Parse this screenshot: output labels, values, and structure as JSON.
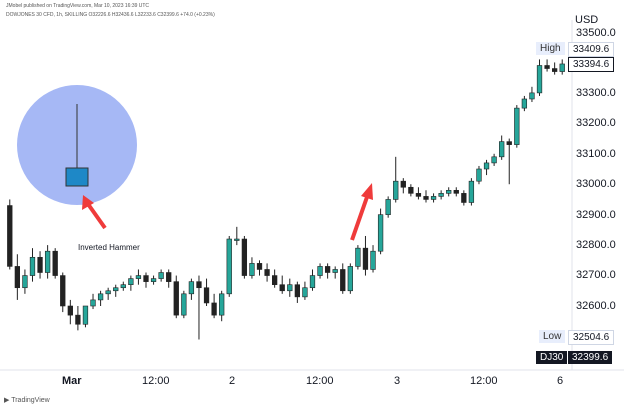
{
  "header": {
    "published_line": "JMobel published on TradingView.com, Mar 10, 2023 16:39 UTC",
    "symbol_line": "DOWJONES 30 CFD, 1h, SKILLING O32226.6 H32436.6 L32233.6 C32399.6 +74.0 (+0.23%)"
  },
  "axis": {
    "currency": "USD",
    "y_ticks": [
      "33500.0",
      "33300.0",
      "33200.0",
      "33100.0",
      "33000.0",
      "32900.0",
      "32800.0",
      "32700.0",
      "32600.0"
    ],
    "x_ticks": [
      "Mar",
      "12:00",
      "2",
      "12:00",
      "3",
      "12:00",
      "6"
    ]
  },
  "tags": {
    "high_label": "High",
    "high_value": "33409.6",
    "current_value": "33394.6",
    "low_label": "Low",
    "low_value": "32504.6",
    "symbol_tag": "DJ30",
    "symbol_value": "32399.6"
  },
  "annotation": {
    "label": "Inverted Hammer"
  },
  "footer": {
    "brand": "TradingView"
  },
  "colors": {
    "up": "#26a69a",
    "down": "#222222",
    "circle": "#a6b8f5",
    "arrow": "#ef3b3b",
    "candle_icon": "#1e88c7"
  },
  "chart_data": {
    "type": "candlestick",
    "title": "",
    "xlabel": "",
    "ylabel": "",
    "ylim": [
      32450,
      33550
    ],
    "candles": [
      {
        "o": 32930,
        "h": 32950,
        "l": 32720,
        "c": 32730
      },
      {
        "o": 32730,
        "h": 32770,
        "l": 32620,
        "c": 32660
      },
      {
        "o": 32660,
        "h": 32720,
        "l": 32640,
        "c": 32700
      },
      {
        "o": 32700,
        "h": 32790,
        "l": 32680,
        "c": 32760
      },
      {
        "o": 32760,
        "h": 32780,
        "l": 32690,
        "c": 32710
      },
      {
        "o": 32710,
        "h": 32800,
        "l": 32690,
        "c": 32780
      },
      {
        "o": 32780,
        "h": 32790,
        "l": 32690,
        "c": 32700
      },
      {
        "o": 32700,
        "h": 32710,
        "l": 32580,
        "c": 32600
      },
      {
        "o": 32600,
        "h": 32620,
        "l": 32540,
        "c": 32570
      },
      {
        "o": 32570,
        "h": 32600,
        "l": 32520,
        "c": 32540
      },
      {
        "o": 32540,
        "h": 32600,
        "l": 32530,
        "c": 32600
      },
      {
        "o": 32600,
        "h": 32640,
        "l": 32590,
        "c": 32620
      },
      {
        "o": 32620,
        "h": 32650,
        "l": 32600,
        "c": 32640
      },
      {
        "o": 32640,
        "h": 32660,
        "l": 32620,
        "c": 32650
      },
      {
        "o": 32650,
        "h": 32670,
        "l": 32630,
        "c": 32660
      },
      {
        "o": 32660,
        "h": 32680,
        "l": 32650,
        "c": 32670
      },
      {
        "o": 32670,
        "h": 32700,
        "l": 32650,
        "c": 32690
      },
      {
        "o": 32690,
        "h": 32720,
        "l": 32670,
        "c": 32700
      },
      {
        "o": 32700,
        "h": 32710,
        "l": 32660,
        "c": 32680
      },
      {
        "o": 32680,
        "h": 32700,
        "l": 32670,
        "c": 32690
      },
      {
        "o": 32690,
        "h": 32720,
        "l": 32680,
        "c": 32710
      },
      {
        "o": 32710,
        "h": 32720,
        "l": 32660,
        "c": 32680
      },
      {
        "o": 32680,
        "h": 32700,
        "l": 32560,
        "c": 32570
      },
      {
        "o": 32570,
        "h": 32650,
        "l": 32560,
        "c": 32640
      },
      {
        "o": 32640,
        "h": 32690,
        "l": 32620,
        "c": 32680
      },
      {
        "o": 32680,
        "h": 32700,
        "l": 32490,
        "c": 32660
      },
      {
        "o": 32660,
        "h": 32690,
        "l": 32600,
        "c": 32610
      },
      {
        "o": 32610,
        "h": 32640,
        "l": 32560,
        "c": 32570
      },
      {
        "o": 32570,
        "h": 32650,
        "l": 32550,
        "c": 32640
      },
      {
        "o": 32640,
        "h": 32830,
        "l": 32630,
        "c": 32820
      },
      {
        "o": 32820,
        "h": 32860,
        "l": 32800,
        "c": 32820
      },
      {
        "o": 32820,
        "h": 32830,
        "l": 32690,
        "c": 32700
      },
      {
        "o": 32700,
        "h": 32760,
        "l": 32690,
        "c": 32740
      },
      {
        "o": 32740,
        "h": 32750,
        "l": 32700,
        "c": 32720
      },
      {
        "o": 32720,
        "h": 32740,
        "l": 32680,
        "c": 32700
      },
      {
        "o": 32700,
        "h": 32720,
        "l": 32660,
        "c": 32670
      },
      {
        "o": 32670,
        "h": 32700,
        "l": 32640,
        "c": 32650
      },
      {
        "o": 32650,
        "h": 32690,
        "l": 32630,
        "c": 32670
      },
      {
        "o": 32670,
        "h": 32680,
        "l": 32610,
        "c": 32630
      },
      {
        "o": 32630,
        "h": 32680,
        "l": 32620,
        "c": 32660
      },
      {
        "o": 32660,
        "h": 32720,
        "l": 32650,
        "c": 32700
      },
      {
        "o": 32700,
        "h": 32740,
        "l": 32690,
        "c": 32730
      },
      {
        "o": 32730,
        "h": 32740,
        "l": 32690,
        "c": 32710
      },
      {
        "o": 32710,
        "h": 32730,
        "l": 32690,
        "c": 32720
      },
      {
        "o": 32720,
        "h": 32740,
        "l": 32640,
        "c": 32650
      },
      {
        "o": 32650,
        "h": 32740,
        "l": 32640,
        "c": 32730
      },
      {
        "o": 32730,
        "h": 32800,
        "l": 32720,
        "c": 32790
      },
      {
        "o": 32790,
        "h": 32830,
        "l": 32700,
        "c": 32720
      },
      {
        "o": 32720,
        "h": 32800,
        "l": 32710,
        "c": 32780
      },
      {
        "o": 32780,
        "h": 32920,
        "l": 32770,
        "c": 32900
      },
      {
        "o": 32900,
        "h": 32960,
        "l": 32890,
        "c": 32950
      },
      {
        "o": 32950,
        "h": 33090,
        "l": 32940,
        "c": 33010
      },
      {
        "o": 33010,
        "h": 33020,
        "l": 32970,
        "c": 32990
      },
      {
        "o": 32990,
        "h": 33000,
        "l": 32960,
        "c": 32970
      },
      {
        "o": 32970,
        "h": 32990,
        "l": 32950,
        "c": 32960
      },
      {
        "o": 32960,
        "h": 32980,
        "l": 32940,
        "c": 32950
      },
      {
        "o": 32950,
        "h": 32970,
        "l": 32940,
        "c": 32960
      },
      {
        "o": 32960,
        "h": 32980,
        "l": 32950,
        "c": 32970
      },
      {
        "o": 32970,
        "h": 32990,
        "l": 32960,
        "c": 32980
      },
      {
        "o": 32980,
        "h": 32990,
        "l": 32960,
        "c": 32970
      },
      {
        "o": 32970,
        "h": 32980,
        "l": 32930,
        "c": 32940
      },
      {
        "o": 32940,
        "h": 33020,
        "l": 32930,
        "c": 33010
      },
      {
        "o": 33010,
        "h": 33060,
        "l": 33000,
        "c": 33050
      },
      {
        "o": 33050,
        "h": 33080,
        "l": 33030,
        "c": 33070
      },
      {
        "o": 33070,
        "h": 33100,
        "l": 33060,
        "c": 33090
      },
      {
        "o": 33090,
        "h": 33160,
        "l": 33080,
        "c": 33140
      },
      {
        "o": 33140,
        "h": 33150,
        "l": 33000,
        "c": 33130
      },
      {
        "o": 33130,
        "h": 33260,
        "l": 33120,
        "c": 33250
      },
      {
        "o": 33250,
        "h": 33290,
        "l": 33240,
        "c": 33280
      },
      {
        "o": 33280,
        "h": 33320,
        "l": 33270,
        "c": 33300
      },
      {
        "o": 33300,
        "h": 33410,
        "l": 33290,
        "c": 33390
      },
      {
        "o": 33390,
        "h": 33410,
        "l": 33370,
        "c": 33380
      },
      {
        "o": 33380,
        "h": 33400,
        "l": 33360,
        "c": 33370
      },
      {
        "o": 33370,
        "h": 33410,
        "l": 33360,
        "c": 33395
      }
    ]
  }
}
